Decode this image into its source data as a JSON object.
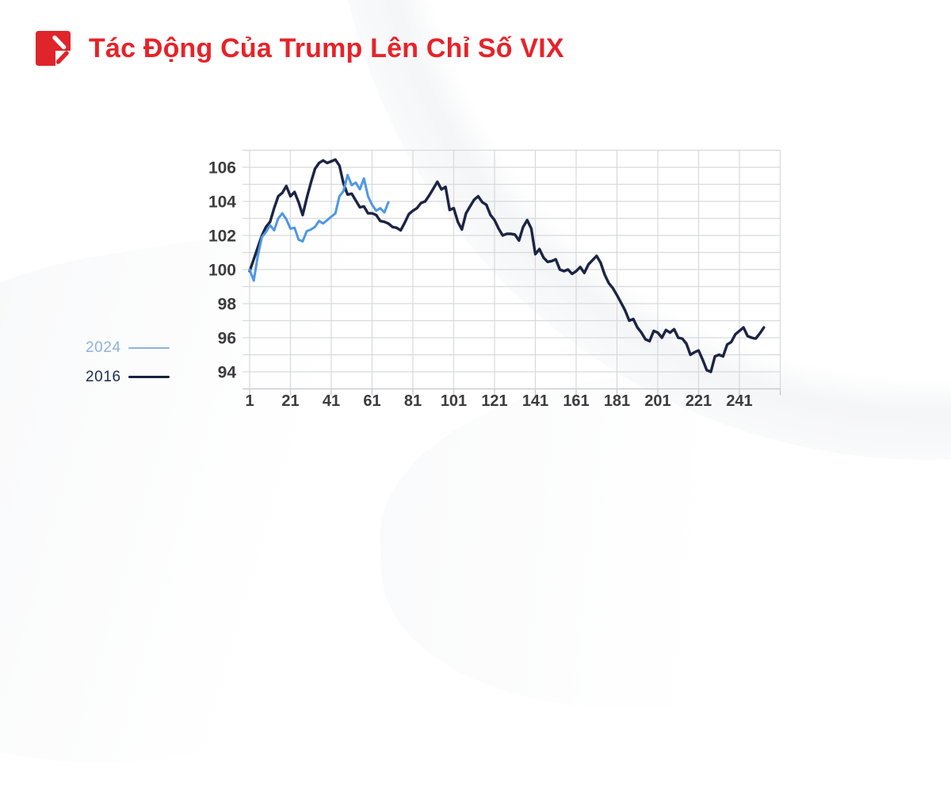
{
  "header": {
    "title": "Tác Động Của Trump Lên Chỉ Số VIX"
  },
  "logo": {
    "icon": "red-square-pen-icon",
    "color": "#E0242B"
  },
  "legend": [
    {
      "label": "2024",
      "text_color": "#8EB2DE",
      "line_color": "#8EB2DE",
      "line_thickness": 2
    },
    {
      "label": "2016",
      "text_color": "#1C2C4E",
      "line_color": "#16223E",
      "line_thickness": 3
    }
  ],
  "colors": {
    "accent_red": "#E62329",
    "grid": "#D8D9DB",
    "axis": "#C4C6C9",
    "tick_label": "#3C3C3E",
    "series_2016": "#1B2444",
    "series_2024": "#4E97E5"
  },
  "chart_data": {
    "type": "line",
    "title": "Tác Động Của Trump Lên Chỉ Số VIX",
    "xlabel": "",
    "ylabel": "",
    "xlim": [
      1,
      261
    ],
    "ylim": [
      93,
      107
    ],
    "x_tick_labels": [
      1,
      21,
      41,
      61,
      81,
      101,
      121,
      141,
      161,
      181,
      201,
      221,
      241
    ],
    "y_tick_labels": [
      94,
      96,
      98,
      100,
      102,
      104,
      106
    ],
    "grid": true,
    "legend_position": "left-bottom-outside",
    "series": [
      {
        "name": "2016",
        "color": "#1B2444",
        "width": 3.4,
        "x_start": 1,
        "x_step": 2,
        "values": [
          99.9,
          100.6,
          101.3,
          102.0,
          102.5,
          102.8,
          103.6,
          104.3,
          104.5,
          104.9,
          104.3,
          104.55,
          103.95,
          103.2,
          104.2,
          105.1,
          105.9,
          106.25,
          106.4,
          106.25,
          106.35,
          106.45,
          106.1,
          105.05,
          104.4,
          104.45,
          104.05,
          103.65,
          103.7,
          103.3,
          103.3,
          103.2,
          102.85,
          102.8,
          102.7,
          102.5,
          102.45,
          102.3,
          102.75,
          103.25,
          103.45,
          103.6,
          103.9,
          104.0,
          104.35,
          104.75,
          105.15,
          104.7,
          104.85,
          103.5,
          103.6,
          102.8,
          102.35,
          103.3,
          103.7,
          104.1,
          104.3,
          103.95,
          103.8,
          103.2,
          102.9,
          102.4,
          102.0,
          102.1,
          102.1,
          102.05,
          101.7,
          102.5,
          102.9,
          102.4,
          100.9,
          101.2,
          100.7,
          100.45,
          100.5,
          100.6,
          100.0,
          99.9,
          100.0,
          99.75,
          99.9,
          100.15,
          99.8,
          100.3,
          100.55,
          100.8,
          100.4,
          99.7,
          99.2,
          98.9,
          98.5,
          98.05,
          97.6,
          97.0,
          97.1,
          96.6,
          96.3,
          95.9,
          95.8,
          96.4,
          96.3,
          96.0,
          96.45,
          96.3,
          96.5,
          96.0,
          95.95,
          95.65,
          95.0,
          95.15,
          95.25,
          94.7,
          94.1,
          94.0,
          94.9,
          95.0,
          94.9,
          95.6,
          95.75,
          96.2,
          96.4,
          96.6,
          96.1,
          96.0,
          95.95,
          96.25,
          96.6
        ]
      },
      {
        "name": "2024",
        "color": "#4E97E5",
        "width": 3.0,
        "x_start": 1,
        "x_step": 2,
        "values": [
          100.0,
          99.35,
          100.8,
          101.9,
          102.2,
          102.6,
          102.3,
          103.0,
          103.3,
          102.95,
          102.4,
          102.45,
          101.75,
          101.65,
          102.25,
          102.35,
          102.5,
          102.85,
          102.7,
          102.9,
          103.1,
          103.3,
          104.3,
          104.6,
          105.55,
          104.95,
          105.1,
          104.7,
          105.35,
          104.3,
          103.8,
          103.45,
          103.6,
          103.35,
          103.95
        ]
      }
    ]
  }
}
